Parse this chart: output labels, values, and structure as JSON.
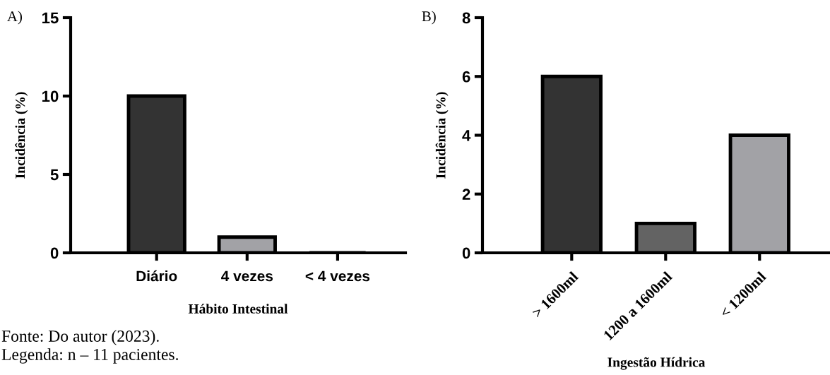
{
  "chart_data": [
    {
      "type": "bar",
      "title": "A)",
      "xlabel": "Hábito Intestinal",
      "ylabel": "Incidência (%)",
      "categories": [
        "Diário",
        "4 vezes",
        "< 4 vezes"
      ],
      "values": [
        10,
        1,
        0
      ],
      "colors": [
        "#333333",
        "#a2a2a6",
        "#000000"
      ],
      "ylim": [
        0,
        15
      ],
      "yticks": [
        0,
        5,
        10,
        15
      ],
      "grid": false,
      "legend": false,
      "annotations": [
        "Fonte: Do autor (2023).",
        "Legenda: n – 11 pacientes."
      ]
    },
    {
      "type": "bar",
      "title": "B)",
      "xlabel": "Ingestão Hídrica",
      "ylabel": "Incidência (%)",
      "categories": [
        "> 1600ml",
        "1200 a 1600ml",
        "< 1200ml"
      ],
      "values": [
        6,
        1,
        4
      ],
      "colors": [
        "#333333",
        "#636363",
        "#a2a2a6"
      ],
      "ylim": [
        0,
        8
      ],
      "yticks": [
        0,
        2,
        4,
        6,
        8
      ],
      "grid": false,
      "legend": false
    }
  ]
}
